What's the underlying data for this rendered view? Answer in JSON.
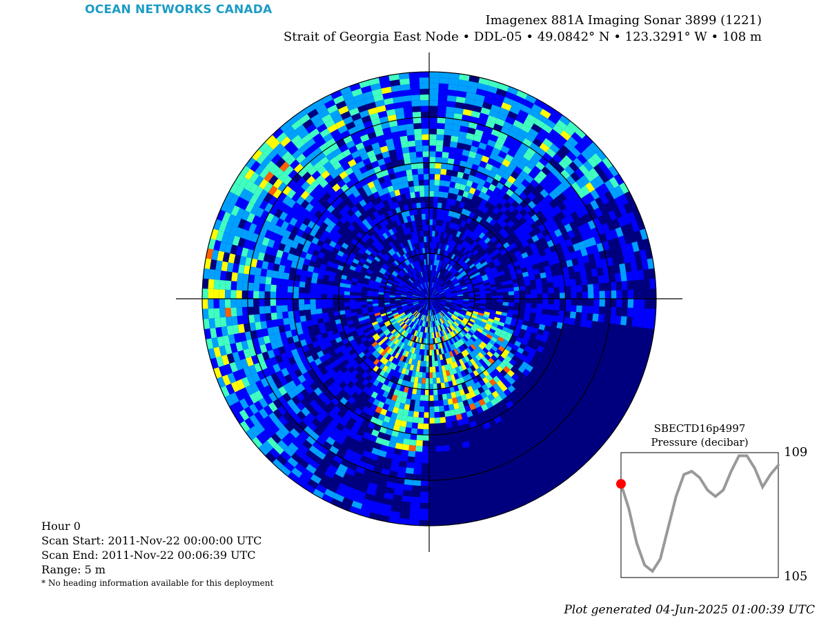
{
  "brand": {
    "logo_text": "OCEAN NETWORKS CANADA",
    "color": "#1c9cc4"
  },
  "header": {
    "title": "Imagenex 881A Imaging Sonar 3899 (1221)",
    "subtitle": "Strait of Georgia East Node • DDL-05 • 49.0842° N • 123.3291° W • 108 m"
  },
  "info": {
    "hour": "Hour 0",
    "scan_start": "Scan Start: 2011-Nov-22 00:00:00 UTC",
    "scan_end": "Scan End: 2011-Nov-22 00:06:39 UTC",
    "range": "Range: 5 m",
    "note": "* No heading information available for this deployment"
  },
  "footer": {
    "generated": "Plot generated 04-Jun-2025 01:00:39 UTC"
  },
  "chart_data": [
    {
      "type": "heatmap",
      "description_type": "polar sonar intensity",
      "range_m": 5,
      "range_rings_m": [
        1,
        2,
        3,
        4
      ],
      "colormap": [
        "#00007f",
        "#0000ff",
        "#00a0ff",
        "#40ffc0",
        "#ffff00",
        "#ff6000",
        "#a00000"
      ],
      "background_color": "#00007f",
      "crosshair": true
    },
    {
      "type": "line",
      "title": "SBECTD16p4997",
      "subtitle": "Pressure (decibar)",
      "ylim": [
        105,
        109
      ],
      "y_ticks": [
        "109",
        "105"
      ],
      "x": [
        0,
        1,
        2,
        3,
        4,
        5,
        6,
        7,
        8,
        9,
        10,
        11,
        12,
        13,
        14,
        15,
        16,
        17,
        18,
        19,
        20
      ],
      "values": [
        108.0,
        107.2,
        106.1,
        105.4,
        105.2,
        105.6,
        106.6,
        107.6,
        108.3,
        108.4,
        108.2,
        107.8,
        107.6,
        107.8,
        108.4,
        108.9,
        108.9,
        108.5,
        107.9,
        108.3,
        108.6
      ],
      "line_color": "#999999",
      "marker_index": 0,
      "marker_color": "#ff0000"
    }
  ]
}
